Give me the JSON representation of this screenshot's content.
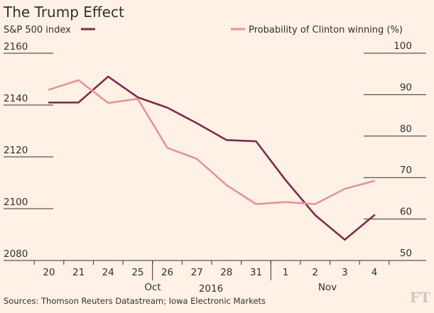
{
  "chart_data": {
    "type": "line",
    "title": "The Trump Effect",
    "legend": [
      {
        "label": "S&P 500 index",
        "color": "#7d2c4d",
        "axis": "left"
      },
      {
        "label": "Probability of Clinton winning (%)",
        "color": "#e3949a",
        "axis": "right"
      }
    ],
    "x": [
      "20",
      "21",
      "24",
      "25",
      "26",
      "27",
      "28",
      "31",
      "1",
      "2",
      "3",
      "4"
    ],
    "x_group_labels": {
      "oct": "Oct",
      "year": "2016",
      "nov": "Nov"
    },
    "left_axis": {
      "ticks": [
        "2160",
        "2140",
        "2120",
        "2100",
        "2080"
      ],
      "range": [
        2080,
        2160
      ]
    },
    "right_axis": {
      "ticks": [
        "100",
        "90",
        "80",
        "70",
        "60",
        "50"
      ],
      "range": [
        50,
        100
      ]
    },
    "series": [
      {
        "name": "S&P 500 index",
        "axis": "left",
        "color": "#7d2c4d",
        "values": [
          2141,
          2141,
          2151,
          2143,
          2139,
          2133,
          2126.5,
          2126,
          2111,
          2097.5,
          2088,
          2097.5
        ]
      },
      {
        "name": "Probability of Clinton winning (%)",
        "axis": "right",
        "color": "#e3949a",
        "values": [
          91.2,
          93.5,
          88.0,
          89.0,
          77.2,
          74.5,
          68.2,
          63.6,
          64.1,
          63.6,
          67.3,
          69.2
        ]
      }
    ],
    "source": "Sources: Thomson Reuters Datastream; Iowa Electronic Markets",
    "logo": "FT"
  }
}
